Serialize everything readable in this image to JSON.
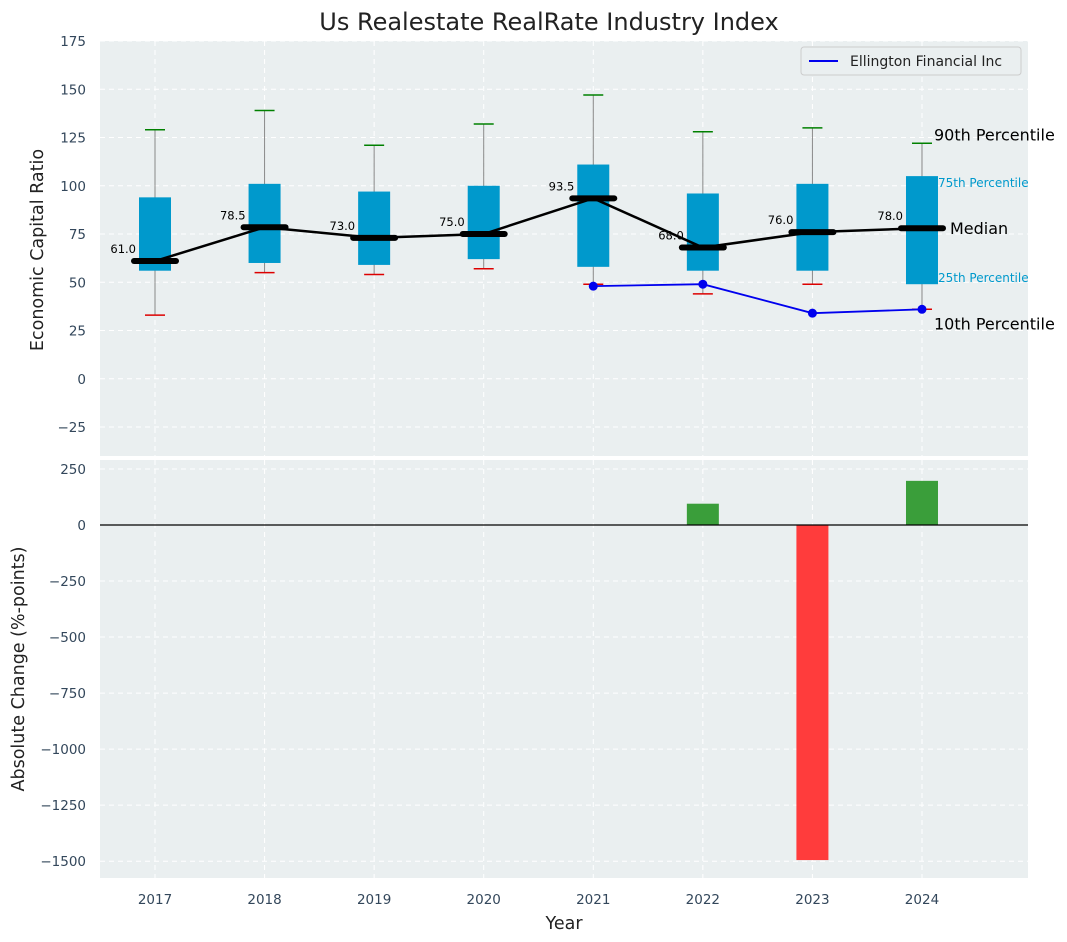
{
  "chart_data": [
    {
      "type": "box",
      "title": "Us Realestate RealRate Industry Index",
      "xlabel": "",
      "ylabel": "Economic Capital Ratio",
      "categories": [
        "2017",
        "2018",
        "2019",
        "2020",
        "2021",
        "2022",
        "2023",
        "2024"
      ],
      "ylim": [
        -40,
        175
      ],
      "yticks": [
        -25,
        0,
        25,
        50,
        75,
        100,
        125,
        150,
        175
      ],
      "ytick_labels": [
        "−25",
        "0",
        "25",
        "50",
        "75",
        "100",
        "125",
        "150",
        "175"
      ],
      "grid": true,
      "boxes": [
        {
          "p10": 33,
          "p25": 56,
          "median": 61.0,
          "p75": 94,
          "p90": 129,
          "median_label": "61.0"
        },
        {
          "p10": 55,
          "p25": 60,
          "median": 78.5,
          "p75": 101,
          "p90": 139,
          "median_label": "78.5"
        },
        {
          "p10": 54,
          "p25": 59,
          "median": 73.0,
          "p75": 97,
          "p90": 121,
          "median_label": "73.0"
        },
        {
          "p10": 57,
          "p25": 62,
          "median": 75.0,
          "p75": 100,
          "p90": 132,
          "median_label": "75.0"
        },
        {
          "p10": 49,
          "p25": 58,
          "median": 93.5,
          "p75": 111,
          "p90": 147,
          "median_label": "93.5"
        },
        {
          "p10": 44,
          "p25": 56,
          "median": 68.0,
          "p75": 96,
          "p90": 128,
          "median_label": "68.0"
        },
        {
          "p10": 49,
          "p25": 56,
          "median": 76.0,
          "p75": 101,
          "p90": 130,
          "median_label": "76.0"
        },
        {
          "p10": 36,
          "p25": 49,
          "median": 78.0,
          "p75": 105,
          "p90": 122,
          "median_label": "78.0"
        }
      ],
      "series": [
        {
          "name": "Ellington Financial Inc",
          "x": [
            "2021",
            "2022",
            "2023",
            "2024"
          ],
          "values": [
            48,
            49,
            34,
            36
          ],
          "color": "#0000ee"
        }
      ],
      "legend": {
        "placement": "top-right",
        "entries": [
          "Ellington Financial Inc"
        ]
      },
      "percentile_labels": {
        "p90": "90th Percentile",
        "p75": "75th Percentile",
        "median": "Median",
        "p25": "25th Percentile",
        "p10": "10th Percentile"
      },
      "colors": {
        "box": "#0099cc",
        "median": "#000000",
        "whisker_top": "#008000",
        "whisker_bottom": "#dd0000",
        "whisker_line": "#888888",
        "background": "#eaeff0",
        "p75_label": "#0099cc",
        "p25_label": "#0099cc"
      }
    },
    {
      "type": "bar",
      "title": "",
      "xlabel": "Year",
      "ylabel": "Absolute Change (%-points)",
      "categories": [
        "2017",
        "2018",
        "2019",
        "2020",
        "2021",
        "2022",
        "2023",
        "2024"
      ],
      "values": [
        null,
        null,
        null,
        null,
        null,
        95,
        -1495,
        197
      ],
      "ylim": [
        -1575,
        290
      ],
      "yticks": [
        -1500,
        -1250,
        -1000,
        -750,
        -500,
        -250,
        0,
        250
      ],
      "ytick_labels": [
        "−1500",
        "−1250",
        "−1000",
        "−750",
        "−500",
        "−250",
        "0",
        "250"
      ],
      "grid": true,
      "colors": {
        "positive": "#3a9e3a",
        "negative": "#ff3c3c",
        "zero_line": "#000000"
      }
    }
  ]
}
